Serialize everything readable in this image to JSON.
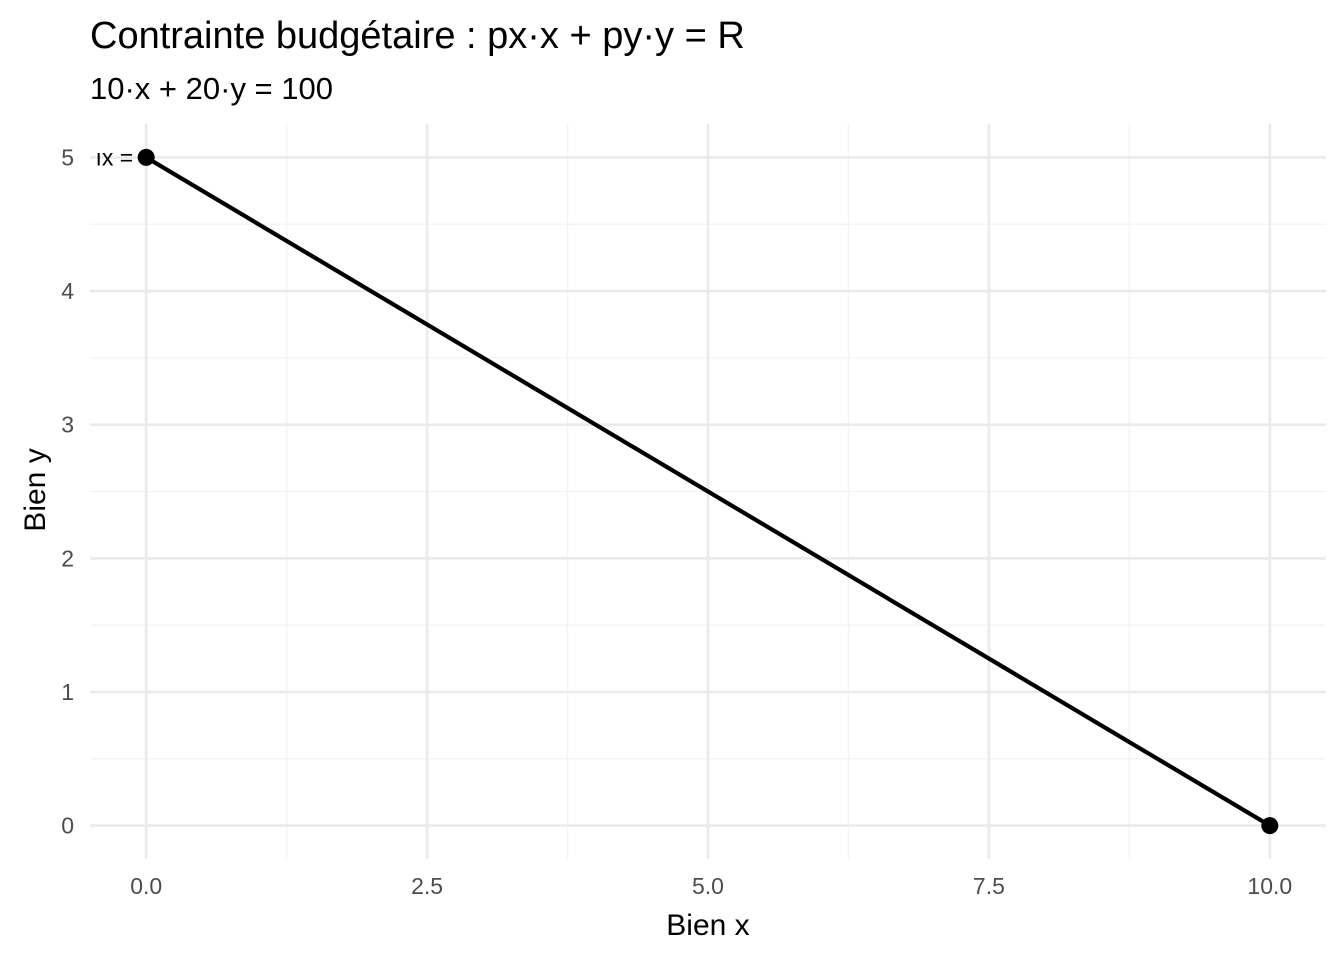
{
  "chart_data": {
    "type": "line",
    "title": "Contrainte budgétaire :  px·x + py·y = R",
    "subtitle": "10·x + 20·y = 100",
    "xlabel": "Bien x",
    "ylabel": "Bien y",
    "xlim": [
      -0.5,
      10.5
    ],
    "ylim": [
      -0.25,
      5.25
    ],
    "x_ticks": [
      0,
      2.5,
      5,
      7.5,
      10
    ],
    "x_tick_labels": [
      "0.0",
      "2.5",
      "5.0",
      "7.5",
      "10.0"
    ],
    "y_ticks": [
      0,
      1,
      2,
      3,
      4,
      5
    ],
    "y_tick_labels": [
      "0",
      "1",
      "2",
      "3",
      "4",
      "5"
    ],
    "x_minor_ticks": [
      1.25,
      3.75,
      6.25,
      8.75
    ],
    "y_minor_ticks": [
      0.5,
      1.5,
      2.5,
      3.5,
      4.5
    ],
    "grid": true,
    "series": [
      {
        "x": [
          0,
          10
        ],
        "y": [
          5,
          0
        ],
        "color": "#000000"
      }
    ],
    "points": [
      {
        "x": 0,
        "y": 5
      },
      {
        "x": 10,
        "y": 0
      }
    ],
    "annotations": [
      {
        "text": "ıx =",
        "x": 0,
        "y": 5
      }
    ]
  }
}
